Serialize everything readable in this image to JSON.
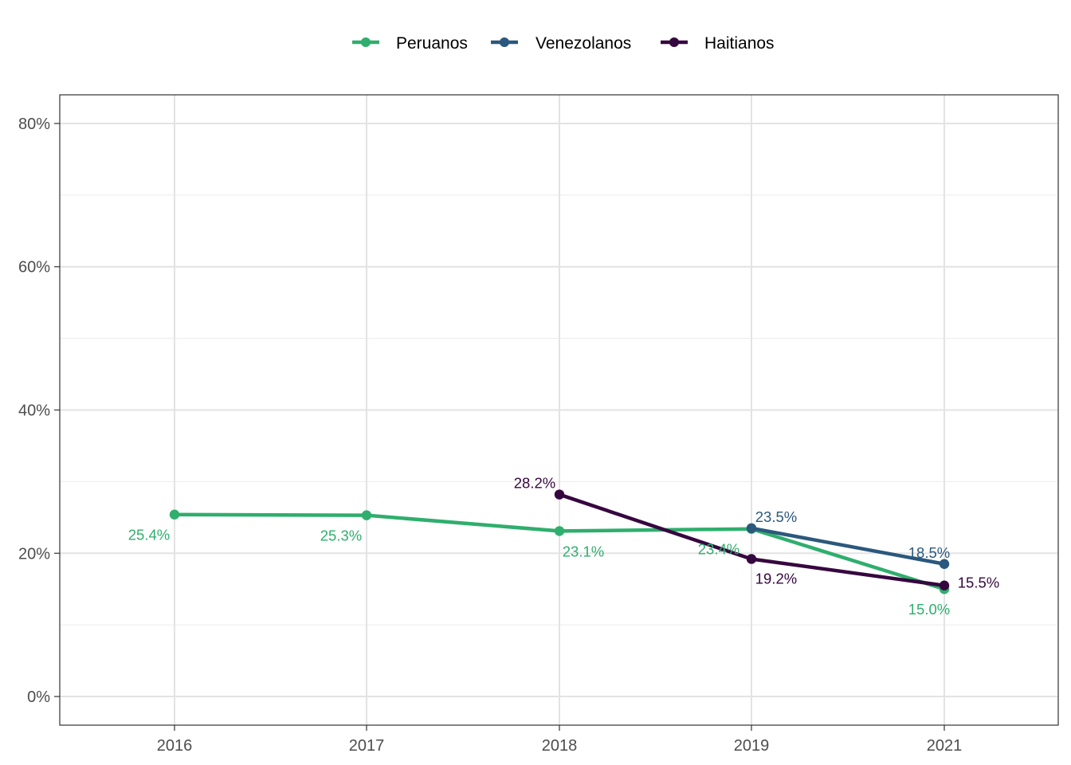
{
  "chart_data": {
    "type": "line",
    "categories": [
      "2016",
      "2017",
      "2018",
      "2019",
      "2021"
    ],
    "ylim": [
      -4,
      84
    ],
    "yticks": [
      0,
      20,
      40,
      60,
      80
    ],
    "ytick_labels": [
      "0%",
      "20%",
      "40%",
      "60%",
      "80%"
    ],
    "grid": true,
    "legend_position": "top",
    "series": [
      {
        "name": "Peruanos",
        "color": "#2fae6d",
        "values": [
          25.4,
          25.3,
          23.1,
          23.4,
          15.0
        ],
        "labels": [
          "25.4%",
          "25.3%",
          "23.1%",
          "23.4%",
          "15.0%"
        ]
      },
      {
        "name": "Venezolanos",
        "color": "#2b587d",
        "values": [
          null,
          null,
          null,
          23.5,
          18.5
        ],
        "labels": [
          "",
          "",
          "",
          "23.5%",
          "18.5%"
        ]
      },
      {
        "name": "Haitianos",
        "color": "#36073f",
        "values": [
          null,
          null,
          28.2,
          19.2,
          15.5
        ],
        "labels": [
          "",
          "",
          "28.2%",
          "19.2%",
          "15.5%"
        ]
      }
    ]
  }
}
